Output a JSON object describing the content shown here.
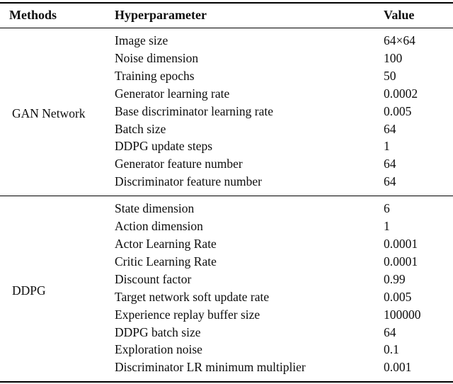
{
  "page": {
    "background_color": "#ffffff",
    "text_color": "#0d0d0d",
    "rule_color": "#000000"
  },
  "table": {
    "headers": [
      "Methods",
      "Hyperparameter",
      "Value"
    ],
    "sections": [
      {
        "method": "GAN Network",
        "rows": [
          {
            "hyperparameter": "Image size",
            "value": "64×64"
          },
          {
            "hyperparameter": "Noise dimension",
            "value": "100"
          },
          {
            "hyperparameter": "Training epochs",
            "value": "50"
          },
          {
            "hyperparameter": "Generator learning rate",
            "value": "0.0002"
          },
          {
            "hyperparameter": "Base discriminator learning rate",
            "value": "0.005"
          },
          {
            "hyperparameter": "Batch size",
            "value": "64"
          },
          {
            "hyperparameter": "DDPG update steps",
            "value": "1"
          },
          {
            "hyperparameter": "Generator feature number",
            "value": "64"
          },
          {
            "hyperparameter": "Discriminator feature number",
            "value": "64"
          }
        ]
      },
      {
        "method": "DDPG",
        "rows": [
          {
            "hyperparameter": "State dimension",
            "value": "6"
          },
          {
            "hyperparameter": "Action dimension",
            "value": "1"
          },
          {
            "hyperparameter": "Actor Learning Rate",
            "value": "0.0001"
          },
          {
            "hyperparameter": "Critic Learning Rate",
            "value": "0.0001"
          },
          {
            "hyperparameter": "Discount factor",
            "value": "0.99"
          },
          {
            "hyperparameter": "Target network soft update rate",
            "value": "0.005"
          },
          {
            "hyperparameter": "Experience replay buffer size",
            "value": "100000"
          },
          {
            "hyperparameter": "DDPG batch size",
            "value": "64"
          },
          {
            "hyperparameter": "Exploration noise",
            "value": "0.1"
          },
          {
            "hyperparameter": "Discriminator LR minimum multiplier",
            "value": "0.001"
          }
        ]
      }
    ]
  }
}
